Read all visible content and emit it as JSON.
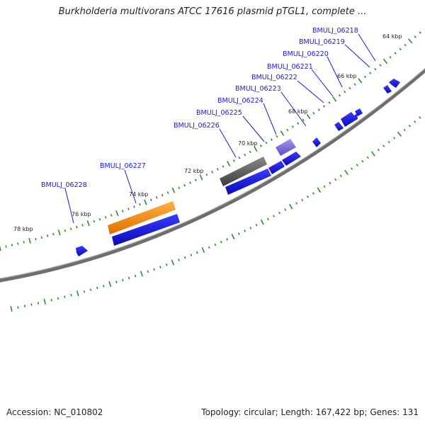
{
  "title": "Burkholderia multivorans ATCC 17616 plasmid pTGL1, complete ...",
  "footer": {
    "accession": "Accession: NC_010802",
    "summary": "Topology: circular; Length: 167,422 bp; Genes: 131"
  },
  "colors": {
    "backbone": "#7a7a7a",
    "tick": "#2e8b2e",
    "label": "#1a1adb",
    "leader": "#1a1adb",
    "gene_blue": "#1515e6",
    "gene_grey": "#5a5a5a",
    "gene_orange": "#f08a0a",
    "gene_purple": "#7b68d6"
  },
  "scale_labels": [
    "64 kbp",
    "66 kbp",
    "68 kbp",
    "70 kbp",
    "72 kbp",
    "74 kbp",
    "76 kbp",
    "78 kbp"
  ],
  "gene_labels": [
    "BMULJ_06218",
    "BMULJ_06219",
    "BMULJ_06220",
    "BMULJ_06221",
    "BMULJ_06222",
    "BMULJ_06223",
    "BMULJ_06224",
    "BMULJ_06225",
    "BMULJ_06226",
    "BMULJ_06227",
    "BMULJ_06228"
  ]
}
